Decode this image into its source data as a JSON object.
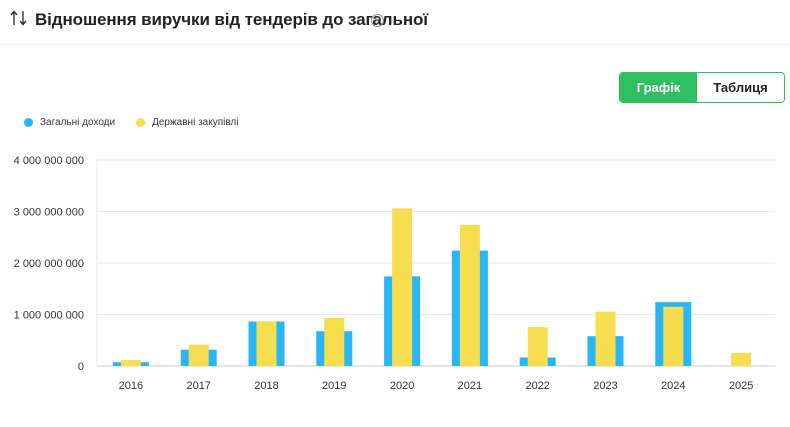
{
  "header": {
    "title": "Відношення виручки від тендерів до загальної",
    "help_glyph": "?"
  },
  "toggle": {
    "chart_label": "Графік",
    "table_label": "Таблиця"
  },
  "colors": {
    "series_total": "#29b6f6",
    "series_gov": "#f6de4f",
    "accent": "#2fbe62",
    "grid": "#e8e8e8"
  },
  "chart_data": {
    "type": "bar",
    "title": "Відношення виручки від тендерів до загальної",
    "categories": [
      "2016",
      "2017",
      "2018",
      "2019",
      "2020",
      "2021",
      "2022",
      "2023",
      "2024",
      "2025"
    ],
    "series": [
      {
        "name": "Загальні доходи",
        "values": [
          75000000,
          315000000,
          865000000,
          675000000,
          1740000000,
          2240000000,
          165000000,
          580000000,
          1240000000,
          0
        ]
      },
      {
        "name": "Державні закупівлі",
        "values": [
          115000000,
          415000000,
          865000000,
          935000000,
          3060000000,
          2740000000,
          755000000,
          1055000000,
          1150000000,
          255000000
        ]
      }
    ],
    "yticks": [
      0,
      1000000000,
      2000000000,
      3000000000,
      4000000000
    ],
    "ytick_labels": [
      "0",
      "1 000 000 000",
      "2 000 000 000",
      "3 000 000 000",
      "4 000 000 000"
    ],
    "ylim": [
      0,
      4000000000
    ],
    "xlabel": "",
    "ylabel": "",
    "grid": true,
    "legend_position": "top-left"
  }
}
